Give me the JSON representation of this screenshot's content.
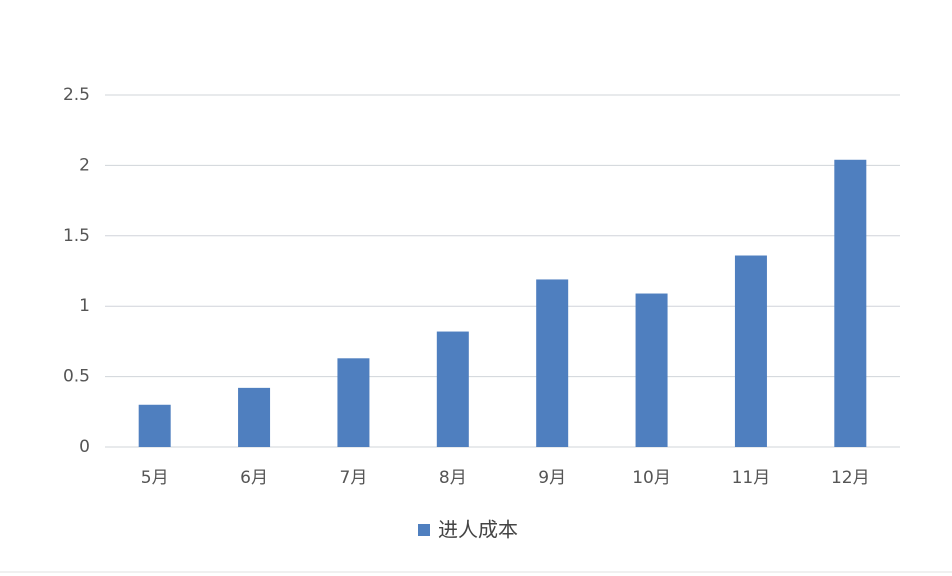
{
  "chart_data": {
    "type": "bar",
    "categories": [
      "5月",
      "6月",
      "7月",
      "8月",
      "9月",
      "10月",
      "11月",
      "12月"
    ],
    "series": [
      {
        "name": "进人成本",
        "color": "#4f7fbf",
        "values": [
          0.3,
          0.42,
          0.63,
          0.82,
          1.19,
          1.09,
          1.36,
          2.04
        ]
      }
    ],
    "ylim": [
      0,
      2.5
    ],
    "yticks": [
      0,
      0.5,
      1,
      1.5,
      2,
      2.5
    ],
    "grid": true,
    "legend": "bottom"
  }
}
